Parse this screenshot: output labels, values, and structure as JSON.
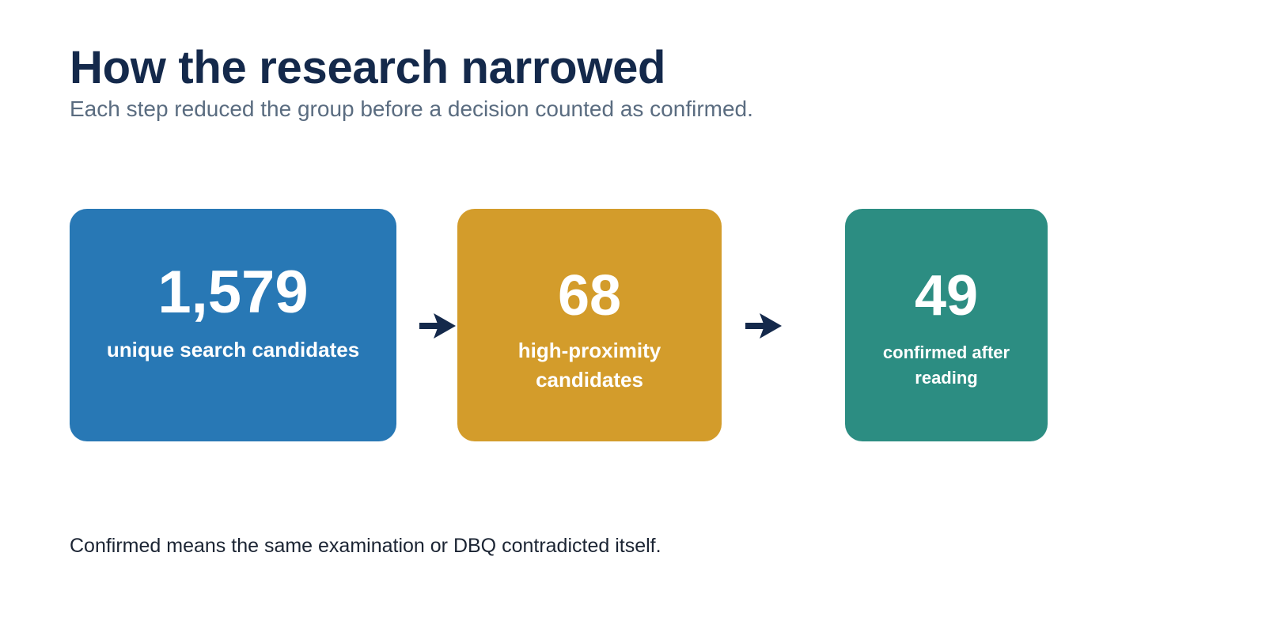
{
  "header": {
    "title": "How the research narrowed",
    "subtitle": "Each step reduced the group before a decision counted as confirmed."
  },
  "funnel": {
    "steps": [
      {
        "value": "1,579",
        "label": "unique search candidates",
        "color": "#2878b5"
      },
      {
        "value": "68",
        "label": "high-proximity candidates",
        "color": "#d39c2b"
      },
      {
        "value": "49",
        "label": "confirmed after reading",
        "color": "#2c8d82"
      }
    ],
    "arrow_icon": "arrow-right-icon",
    "arrow_color": "#14294b"
  },
  "footnote": "Confirmed means the same examination or DBQ contradicted itself."
}
